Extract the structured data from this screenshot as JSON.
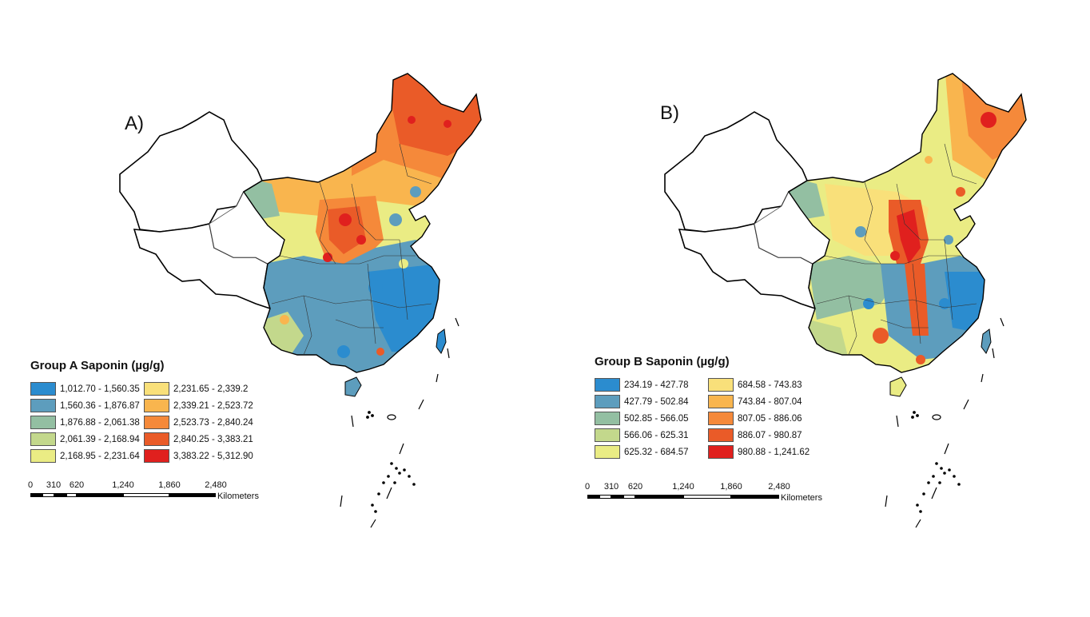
{
  "panels": [
    {
      "label": "A)",
      "legend_title": "Group A Saponin (µg/g)",
      "classes": [
        {
          "range": "1,012.70 - 1,560.35",
          "color": "#2b8ccf"
        },
        {
          "range": "1,560.36 - 1,876.87",
          "color": "#5d9dbd"
        },
        {
          "range": "1,876.88 - 2,061.38",
          "color": "#93bfa2"
        },
        {
          "range": "2,061.39 - 2,168.94",
          "color": "#c3d88c"
        },
        {
          "range": "2,168.95 - 2,231.64",
          "color": "#eaec84"
        },
        {
          "range": "2,231.65 - 2,339.2",
          "color": "#f9e07a"
        },
        {
          "range": "2,339.21 - 2,523.72",
          "color": "#f9b54e"
        },
        {
          "range": "2,523.73 - 2,840.24",
          "color": "#f5893a"
        },
        {
          "range": "2,840.25 - 3,383.21",
          "color": "#ea5b28"
        },
        {
          "range": "3,383.22 - 5,312.90",
          "color": "#e0201e"
        }
      ]
    },
    {
      "label": "B)",
      "legend_title": "Group B Saponin (µg/g)",
      "classes": [
        {
          "range": "234.19 - 427.78",
          "color": "#2b8ccf"
        },
        {
          "range": "427.79 - 502.84",
          "color": "#5d9dbd"
        },
        {
          "range": "502.85 - 566.05",
          "color": "#93bfa2"
        },
        {
          "range": "566.06 - 625.31",
          "color": "#c3d88c"
        },
        {
          "range": "625.32 - 684.57",
          "color": "#eaec84"
        },
        {
          "range": "684.58 - 743.83",
          "color": "#f9e07a"
        },
        {
          "range": "743.84 - 807.04",
          "color": "#f9b54e"
        },
        {
          "range": "807.05 - 886.06",
          "color": "#f5893a"
        },
        {
          "range": "886.07 - 980.87",
          "color": "#ea5b28"
        },
        {
          "range": "980.88 - 1,241.62",
          "color": "#e0201e"
        }
      ]
    }
  ],
  "scalebar": {
    "ticks": [
      "0",
      "310",
      "620",
      "1,240",
      "1,860",
      "2,480"
    ],
    "unit": "Kilometers"
  }
}
